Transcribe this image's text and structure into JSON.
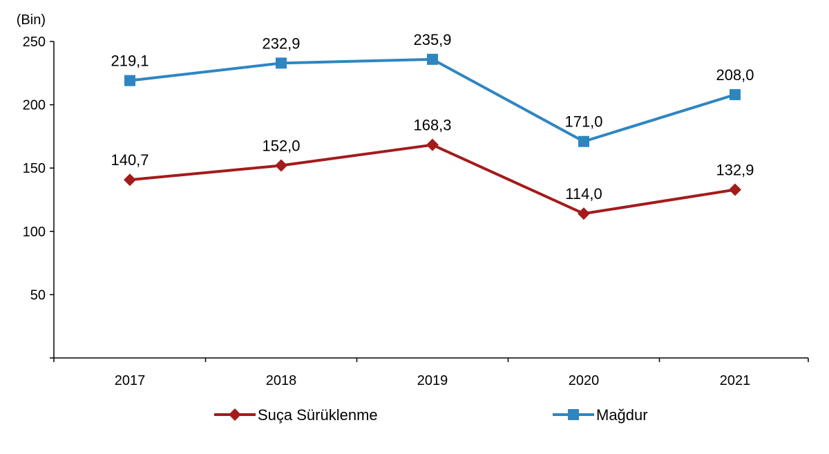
{
  "chart_data": {
    "type": "line",
    "unit_label": "(Bin)",
    "categories": [
      "2017",
      "2018",
      "2019",
      "2020",
      "2021"
    ],
    "ylim": [
      0,
      250
    ],
    "yticks": [
      50,
      100,
      150,
      200,
      250
    ],
    "grid": false,
    "legend_position": "bottom",
    "series": [
      {
        "name": "Suça Sürüklenme",
        "values": [
          140.7,
          152.0,
          168.3,
          114.0,
          132.9
        ],
        "labels": [
          "140,7",
          "152,0",
          "168,3",
          "114,0",
          "132,9"
        ],
        "color": "#a31b1b",
        "marker": "diamond"
      },
      {
        "name": "Mağdur",
        "values": [
          219.1,
          232.9,
          235.9,
          171.0,
          208.0
        ],
        "labels": [
          "219,1",
          "232,9",
          "235,9",
          "171,0",
          "208,0"
        ],
        "color": "#2e86c1",
        "marker": "square"
      }
    ]
  }
}
